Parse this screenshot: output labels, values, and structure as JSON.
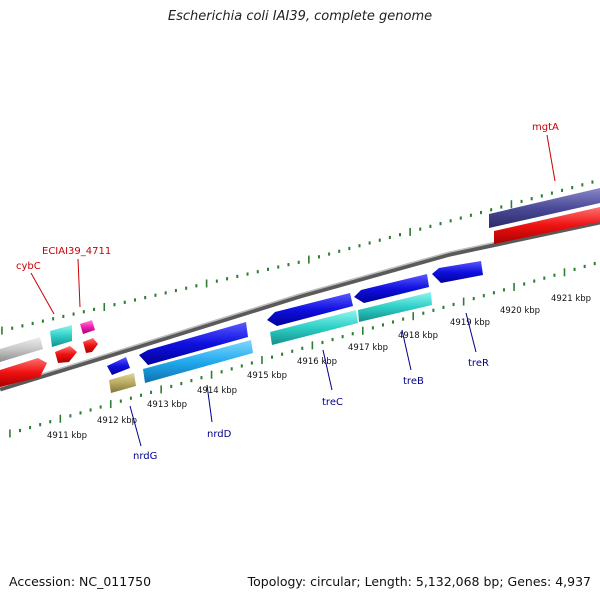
{
  "title": "Escherichia coli IAI39, complete genome",
  "accession_label": "Accession: NC_011750",
  "stats_label": "Topology: circular; Length: 5,132,068 bp; Genes: 4,937",
  "colors": {
    "forward_label": "#cc0000",
    "reverse_label": "#00008b",
    "tick": "#2e7d32",
    "backbone": "#888888"
  },
  "kbp_ticks": [
    {
      "kbp": 4911,
      "label": "4911 kbp"
    },
    {
      "kbp": 4912,
      "label": "4912 kbp"
    },
    {
      "kbp": 4913,
      "label": "4913 kbp"
    },
    {
      "kbp": 4914,
      "label": "4914 kbp"
    },
    {
      "kbp": 4915,
      "label": "4915 kbp"
    },
    {
      "kbp": 4916,
      "label": "4916 kbp"
    },
    {
      "kbp": 4917,
      "label": "4917 kbp"
    },
    {
      "kbp": 4918,
      "label": "4918 kbp"
    },
    {
      "kbp": 4919,
      "label": "4919 kbp"
    },
    {
      "kbp": 4920,
      "label": "4920 kbp"
    },
    {
      "kbp": 4921,
      "label": "4921 kbp"
    }
  ],
  "gene_labels": [
    {
      "name": "cybC",
      "strand": "forward"
    },
    {
      "name": "ECIAI39_4711",
      "strand": "forward"
    },
    {
      "name": "mgtA",
      "strand": "forward"
    },
    {
      "name": "nrdG",
      "strand": "reverse"
    },
    {
      "name": "nrdD",
      "strand": "reverse"
    },
    {
      "name": "treC",
      "strand": "reverse"
    },
    {
      "name": "treB",
      "strand": "reverse"
    },
    {
      "name": "treR",
      "strand": "reverse"
    }
  ]
}
